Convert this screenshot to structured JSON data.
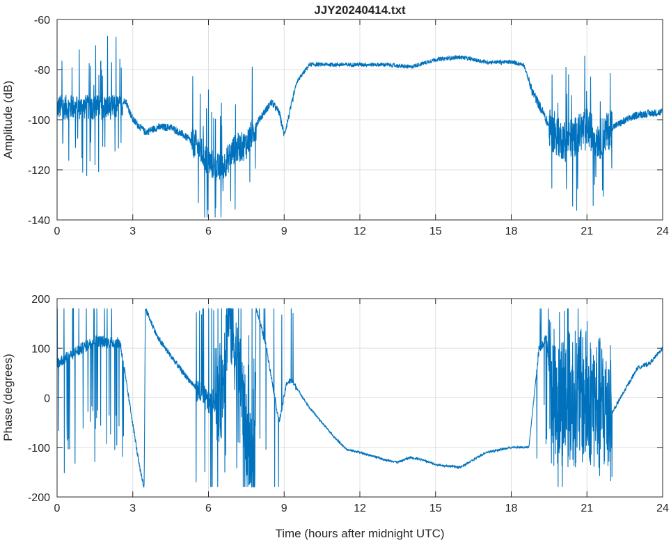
{
  "chart_data": [
    {
      "type": "line",
      "title": "JJY20240414.txt",
      "xlabel": "",
      "ylabel": "Amplitude (dB)",
      "xlim": [
        0,
        24
      ],
      "ylim": [
        -140,
        -60
      ],
      "xticks": [
        "0",
        "3",
        "6",
        "9",
        "12",
        "15",
        "18",
        "21",
        "24"
      ],
      "yticks": [
        "-60",
        "-80",
        "-100",
        "-120",
        "-140"
      ],
      "grid": true,
      "color": "#0072BD",
      "series": [
        {
          "name": "amplitude",
          "x": [
            0,
            2.5,
            2.7,
            3.0,
            3.5,
            4,
            4.5,
            5,
            5.5,
            6,
            6.5,
            7,
            7.5,
            8,
            8.5,
            8.8,
            9,
            9.2,
            9.5,
            10,
            11,
            12,
            13,
            14,
            15,
            16,
            17,
            18,
            18.5,
            18.8,
            19,
            19.3,
            19.6,
            20,
            20.5,
            21,
            21.5,
            22,
            23,
            24
          ],
          "y": [
            -95,
            -95,
            -92,
            -100,
            -105,
            -103,
            -103,
            -106,
            -110,
            -117,
            -120,
            -112,
            -110,
            -100,
            -93,
            -97,
            -106,
            -98,
            -85,
            -78,
            -78,
            -78,
            -78,
            -79,
            -76,
            -75,
            -77,
            -77,
            -78,
            -88,
            -92,
            -98,
            -105,
            -108,
            -107,
            -103,
            -108,
            -103,
            -98,
            -97
          ],
          "noise": [
            [
              0,
              2.6,
              5,
              0.1
            ],
            [
              2.6,
              5.3,
              1.5,
              0
            ],
            [
              5.3,
              7.9,
              6,
              0.06
            ],
            [
              7.9,
              9.4,
              1.5,
              0
            ],
            [
              9.4,
              18.7,
              0.8,
              0
            ],
            [
              18.7,
              19.5,
              2,
              0
            ],
            [
              19.5,
              22,
              8,
              0.08
            ],
            [
              22,
              24,
              1.5,
              0
            ]
          ]
        }
      ]
    },
    {
      "type": "line",
      "title": "",
      "xlabel": "Time (hours after midnight UTC)",
      "ylabel": "Phase (degrees)",
      "xlim": [
        0,
        24
      ],
      "ylim": [
        -200,
        200
      ],
      "xticks": [
        "0",
        "3",
        "6",
        "9",
        "12",
        "15",
        "18",
        "21",
        "24"
      ],
      "yticks": [
        "200",
        "100",
        "0",
        "-100",
        "-200"
      ],
      "grid": true,
      "color": "#0072BD",
      "series": [
        {
          "name": "phase",
          "x": [
            0,
            1,
            1.5,
            2.5,
            3.3,
            3.45,
            3.5,
            4,
            5,
            5.5,
            6,
            6.5,
            6.8,
            7.2,
            7.8,
            7.9,
            8.3,
            8.8,
            9.1,
            9.3,
            10,
            11,
            11.5,
            12,
            13,
            13.5,
            14,
            14.5,
            15,
            16,
            17,
            18,
            18.7,
            19.1,
            19.4,
            19.6,
            21,
            22,
            23,
            23.5,
            24
          ],
          "y": [
            70,
            100,
            115,
            110,
            -150,
            -180,
            180,
            120,
            50,
            20,
            -10,
            0,
            180,
            50,
            -170,
            180,
            100,
            -50,
            30,
            35,
            -20,
            -80,
            -105,
            -110,
            -125,
            -130,
            -120,
            -125,
            -135,
            -140,
            -110,
            -100,
            -100,
            100,
            120,
            0,
            0,
            -30,
            60,
            70,
            100
          ],
          "noise": [
            [
              0,
              2.7,
              12,
              0.12
            ],
            [
              2.7,
              5.5,
              6,
              0
            ],
            [
              5.5,
              6.3,
              25,
              0.1
            ],
            [
              6.3,
              7.9,
              90,
              0.15
            ],
            [
              7.9,
              9.5,
              6,
              0.04
            ],
            [
              9.5,
              19,
              2,
              0
            ],
            [
              19,
              19.5,
              10,
              0.15
            ],
            [
              19.5,
              22,
              140,
              0.05
            ],
            [
              22,
              24,
              4,
              0
            ]
          ]
        }
      ]
    }
  ]
}
